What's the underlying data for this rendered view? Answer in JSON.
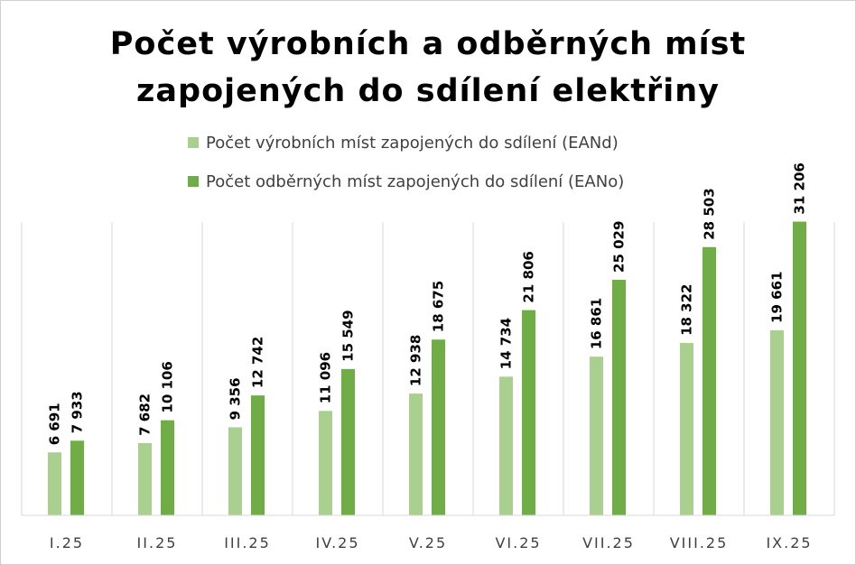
{
  "chart_data": {
    "type": "bar",
    "title_lines": [
      "Počet výrobních a odběrných míst",
      "zapojených do sdílení elektřiny"
    ],
    "categories": [
      "I.25",
      "II.25",
      "III.25",
      "IV.25",
      "V.25",
      "VI.25",
      "VII.25",
      "VIII.25",
      "IX.25"
    ],
    "series": [
      {
        "name": "Počet výrobních míst zapojených do sdílení (EANd)",
        "color": "#a9d08e",
        "values": [
          6691,
          7682,
          9356,
          11096,
          12938,
          14734,
          16861,
          18322,
          19661
        ],
        "labels": [
          "6 691",
          "7 682",
          "9 356",
          "11 096",
          "12 938",
          "14 734",
          "16 861",
          "18 322",
          "19 661"
        ]
      },
      {
        "name": "Počet odběrných míst zapojených do sdílení (EANo)",
        "color": "#70ad47",
        "values": [
          7933,
          10106,
          12742,
          15549,
          18675,
          21806,
          25029,
          28503,
          31206
        ],
        "labels": [
          "7 933",
          "10 106",
          "12 742",
          "15 549",
          "18 675",
          "21 806",
          "25 029",
          "28 503",
          "31 206"
        ]
      }
    ],
    "ylim": [
      0,
      35000
    ],
    "grid": "vertical category separators",
    "legend_position": "top"
  }
}
